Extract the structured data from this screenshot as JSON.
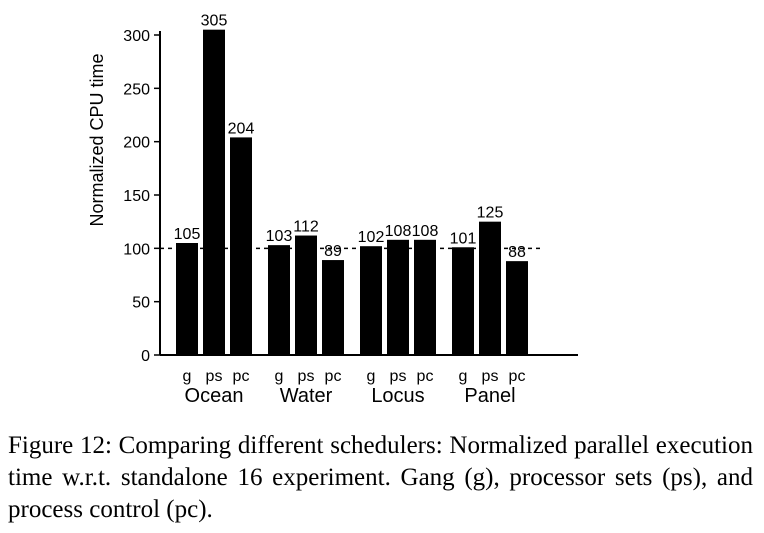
{
  "chart_data": {
    "type": "bar",
    "ylabel": "Normalized CPU time",
    "ylim": [
      0,
      300
    ],
    "yticks": [
      0,
      50,
      100,
      150,
      200,
      250,
      300
    ],
    "reference_line": 100,
    "groups": [
      {
        "name": "Ocean",
        "bars": [
          {
            "label": "g",
            "value": 105
          },
          {
            "label": "ps",
            "value": 305
          },
          {
            "label": "pc",
            "value": 204
          }
        ]
      },
      {
        "name": "Water",
        "bars": [
          {
            "label": "g",
            "value": 103
          },
          {
            "label": "ps",
            "value": 112
          },
          {
            "label": "pc",
            "value": 89
          }
        ]
      },
      {
        "name": "Locus",
        "bars": [
          {
            "label": "g",
            "value": 102
          },
          {
            "label": "ps",
            "value": 108
          },
          {
            "label": "pc",
            "value": 108
          }
        ]
      },
      {
        "name": "Panel",
        "bars": [
          {
            "label": "g",
            "value": 101
          },
          {
            "label": "ps",
            "value": 125
          },
          {
            "label": "pc",
            "value": 88
          }
        ]
      }
    ],
    "bar_color": "#000000"
  },
  "caption": "Figure 12: Comparing different schedulers: Normalized parallel execution time w.r.t. standalone 16 experiment. Gang (g), processor sets (ps), and process control (pc)."
}
